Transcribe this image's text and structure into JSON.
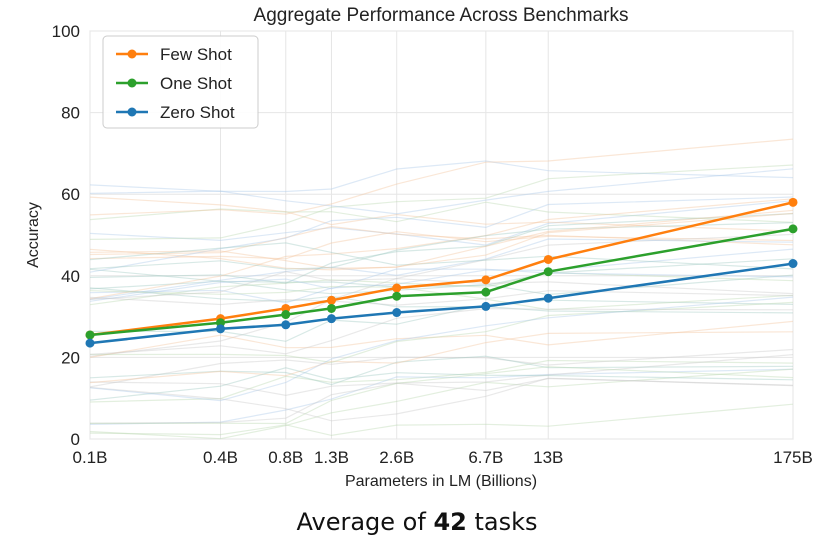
{
  "chart_data": {
    "type": "line",
    "title": "Aggregate Performance Across Benchmarks",
    "xlabel": "Parameters in LM (Billions)",
    "ylabel": "Accuracy",
    "ylim": [
      0,
      100
    ],
    "yticks": [
      0,
      20,
      40,
      60,
      80,
      100
    ],
    "x": [
      0.1,
      0.4,
      0.8,
      1.3,
      2.6,
      6.7,
      13,
      175
    ],
    "x_labels": [
      "0.1B",
      "0.4B",
      "0.8B",
      "1.3B",
      "2.6B",
      "6.7B",
      "13B",
      "175B"
    ],
    "x_scale": "log",
    "grid": true,
    "legend_position": "top-left",
    "series": [
      {
        "name": "Few Shot",
        "color": "#ff7f0e",
        "values": [
          25.5,
          29.5,
          32,
          34,
          37,
          39,
          44,
          58
        ]
      },
      {
        "name": "One Shot",
        "color": "#2ca02c",
        "values": [
          25.5,
          28.5,
          30.5,
          32,
          35,
          36,
          41,
          51.5
        ]
      },
      {
        "name": "Zero Shot",
        "color": "#1f77b4",
        "values": [
          23.5,
          27,
          28,
          29.5,
          31,
          32.5,
          34.5,
          43
        ]
      }
    ]
  },
  "caption": {
    "prefix": "Average of ",
    "count": "42",
    "suffix": " tasks"
  }
}
